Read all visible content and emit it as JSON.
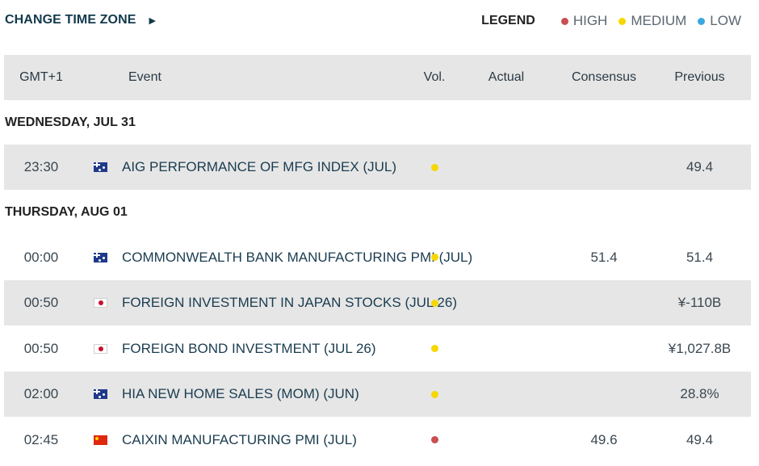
{
  "header": {
    "change_time_zone": "CHANGE TIME ZONE",
    "legend_title": "LEGEND",
    "legend": [
      {
        "label": "HIGH",
        "color": "#c94f50"
      },
      {
        "label": "MEDIUM",
        "color": "#f6d700"
      },
      {
        "label": "LOW",
        "color": "#3aa8e0"
      }
    ]
  },
  "columns": {
    "time": "GMT+1",
    "event": "Event",
    "vol": "Vol.",
    "actual": "Actual",
    "consensus": "Consensus",
    "previous": "Previous"
  },
  "days": [
    {
      "label": "WEDNESDAY, JUL 31",
      "events": [
        {
          "time": "23:30",
          "flag": "au-flag-icon",
          "event": "AIG PERFORMANCE OF MFG INDEX (JUL)",
          "vol": "medium",
          "vol_color": "#f6d700",
          "actual": "",
          "consensus": "",
          "previous": "49.4"
        }
      ]
    },
    {
      "label": "THURSDAY, AUG 01",
      "events": [
        {
          "time": "00:00",
          "flag": "au-flag-icon",
          "event": "COMMONWEALTH BANK MANUFACTURING PMI (JUL)",
          "vol": "medium",
          "vol_color": "#f6d700",
          "actual": "",
          "consensus": "51.4",
          "previous": "51.4"
        },
        {
          "time": "00:50",
          "flag": "jp-flag-icon",
          "event": "FOREIGN INVESTMENT IN JAPAN STOCKS (JUL 26)",
          "vol": "medium",
          "vol_color": "#f6d700",
          "actual": "",
          "consensus": "",
          "previous": "¥-110B"
        },
        {
          "time": "00:50",
          "flag": "jp-flag-icon",
          "event": "FOREIGN BOND INVESTMENT (JUL 26)",
          "vol": "medium",
          "vol_color": "#f6d700",
          "actual": "",
          "consensus": "",
          "previous": "¥1,027.8B"
        },
        {
          "time": "02:00",
          "flag": "au-flag-icon",
          "event": "HIA NEW HOME SALES (MOM) (JUN)",
          "vol": "medium",
          "vol_color": "#f6d700",
          "actual": "",
          "consensus": "",
          "previous": "28.8%"
        },
        {
          "time": "02:45",
          "flag": "cn-flag-icon",
          "event": "CAIXIN MANUFACTURING PMI (JUL)",
          "vol": "high",
          "vol_color": "#c94f50",
          "actual": "",
          "consensus": "49.6",
          "previous": "49.4"
        }
      ]
    }
  ]
}
